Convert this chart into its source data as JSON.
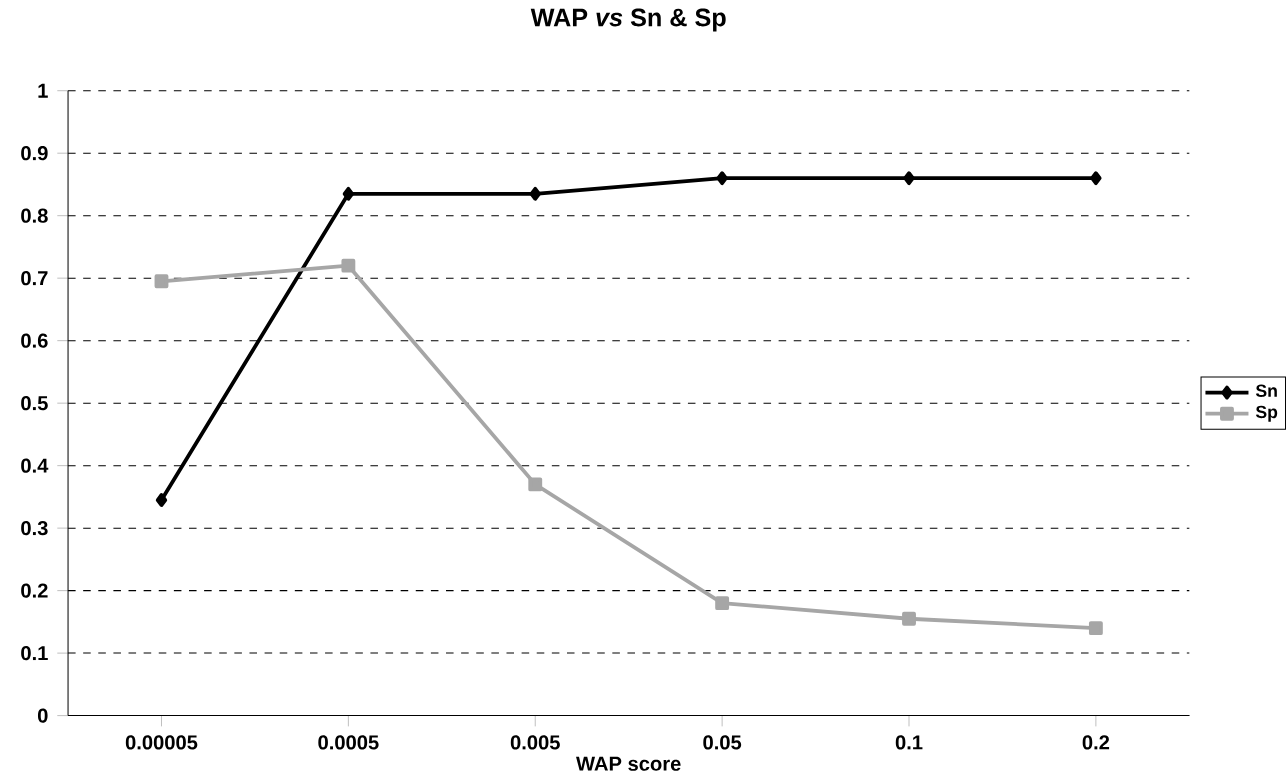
{
  "chart_data": {
    "type": "line",
    "title": "WAP *vs* Sn & Sp",
    "xlabel": "WAP score",
    "categories": [
      "0.00005",
      "0.0005",
      "0.005",
      "0.05",
      "0.1",
      "0.2"
    ],
    "series": [
      {
        "name": "Sn",
        "color": "#000000",
        "marker": "diamond",
        "values": [
          0.345,
          0.835,
          0.835,
          0.86,
          0.86,
          0.86
        ]
      },
      {
        "name": "Sp",
        "color": "#a6a6a6",
        "marker": "square",
        "values": [
          0.695,
          0.72,
          0.37,
          0.18,
          0.155,
          0.14
        ]
      }
    ],
    "ylim": [
      0,
      1
    ],
    "yticks": [
      0,
      0.1,
      0.2,
      0.3,
      0.4,
      0.5,
      0.6,
      0.7,
      0.8,
      0.9,
      1
    ],
    "grid": "y",
    "legend": "right",
    "line_style": "solid"
  }
}
